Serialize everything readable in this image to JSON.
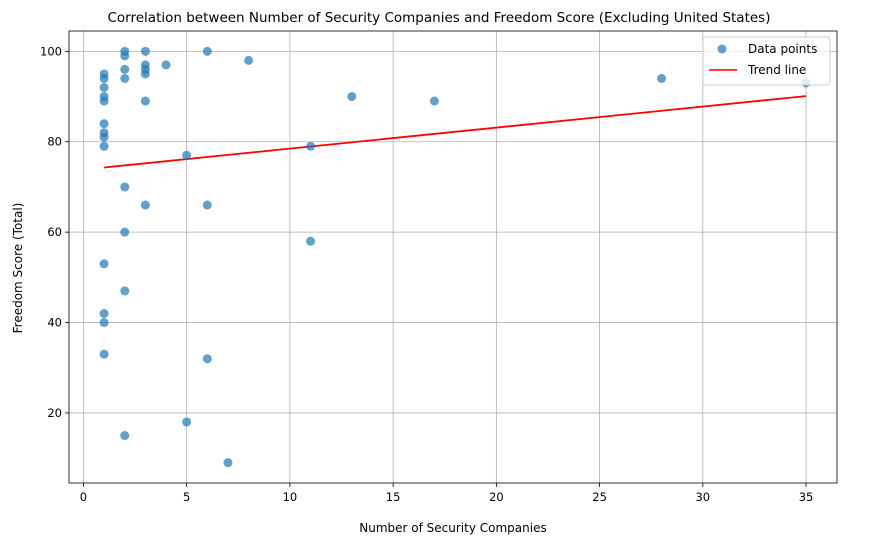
{
  "chart_data": {
    "type": "scatter",
    "title": "Correlation between Number of Security Companies and Freedom Score (Excluding United States)",
    "xlabel": "Number of Security Companies",
    "ylabel": "Freedom Score (Total)",
    "xlim": [
      -0.7,
      36.5
    ],
    "ylim": [
      4.5,
      104.5
    ],
    "xticks": [
      0,
      5,
      10,
      15,
      20,
      25,
      30,
      35
    ],
    "yticks": [
      20,
      40,
      60,
      80,
      100
    ],
    "grid": true,
    "legend": {
      "placement": "top-right",
      "entries": [
        "Data points",
        "Trend line"
      ]
    },
    "colors": {
      "points": "#1f77b4",
      "trend": "#ff0000",
      "grid": "#b0b0b0"
    },
    "series": [
      {
        "name": "Data points",
        "kind": "scatter",
        "points": [
          [
            1,
            95
          ],
          [
            1,
            94
          ],
          [
            1,
            92
          ],
          [
            1,
            90
          ],
          [
            1,
            89
          ],
          [
            1,
            84
          ],
          [
            1,
            82
          ],
          [
            1,
            81
          ],
          [
            1,
            79
          ],
          [
            1,
            53
          ],
          [
            1,
            42
          ],
          [
            1,
            40
          ],
          [
            1,
            33
          ],
          [
            2,
            100
          ],
          [
            2,
            99
          ],
          [
            2,
            96
          ],
          [
            2,
            94
          ],
          [
            2,
            70
          ],
          [
            2,
            60
          ],
          [
            2,
            47
          ],
          [
            2,
            15
          ],
          [
            3,
            100
          ],
          [
            3,
            97
          ],
          [
            3,
            96
          ],
          [
            3,
            95
          ],
          [
            3,
            89
          ],
          [
            3,
            66
          ],
          [
            4,
            97
          ],
          [
            5,
            77
          ],
          [
            5,
            18
          ],
          [
            6,
            100
          ],
          [
            6,
            66
          ],
          [
            6,
            32
          ],
          [
            7,
            9
          ],
          [
            8,
            98
          ],
          [
            11,
            79
          ],
          [
            11,
            58
          ],
          [
            13,
            90
          ],
          [
            17,
            89
          ],
          [
            28,
            94
          ],
          [
            35,
            93
          ]
        ]
      },
      {
        "name": "Trend line",
        "kind": "line",
        "points": [
          [
            1,
            74.3
          ],
          [
            35,
            90.1
          ]
        ]
      }
    ]
  }
}
